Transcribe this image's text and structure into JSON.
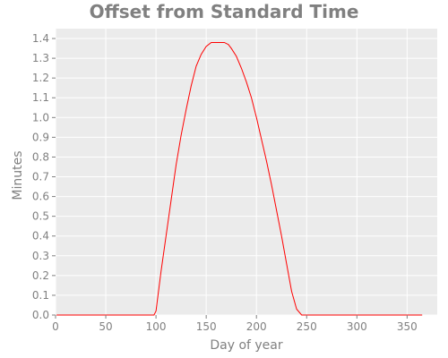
{
  "chart_data": {
    "type": "line",
    "title": "Offset from Standard Time",
    "xlabel": "Day of year",
    "ylabel": "Minutes",
    "xlim": [
      0,
      380
    ],
    "ylim": [
      0,
      1.45
    ],
    "x_ticks": [
      0,
      50,
      100,
      150,
      200,
      250,
      300,
      350
    ],
    "x_tick_labels": [
      "0",
      "50",
      "100",
      "150",
      "200",
      "250",
      "300",
      "350"
    ],
    "y_ticks": [
      0,
      0.1,
      0.2,
      0.3,
      0.4,
      0.5,
      0.6,
      0.7,
      0.8,
      0.9,
      1.0,
      1.1,
      1.2,
      1.3,
      1.4
    ],
    "y_tick_labels": [
      "0.0",
      "0.1",
      "0.2",
      "0.3",
      "0.4",
      "0.5",
      "0.6",
      "0.7",
      "0.8",
      "0.9",
      "1.0",
      "1.1",
      "1.2",
      "1.3",
      "1.4"
    ],
    "grid": true,
    "background": "#ebebeb",
    "grid_color": "#ffffff",
    "series": [
      {
        "color": "#ff0000",
        "x": [
          1,
          50,
          98,
          100,
          105,
          110,
          115,
          120,
          125,
          130,
          135,
          140,
          145,
          150,
          155,
          160,
          165,
          168,
          172,
          175,
          180,
          185,
          190,
          195,
          200,
          205,
          210,
          215,
          220,
          225,
          230,
          235,
          240,
          245,
          248,
          250,
          300,
          365
        ],
        "y": [
          0,
          0,
          0,
          0.02,
          0.22,
          0.4,
          0.58,
          0.76,
          0.91,
          1.04,
          1.16,
          1.26,
          1.32,
          1.36,
          1.38,
          1.38,
          1.38,
          1.38,
          1.37,
          1.35,
          1.31,
          1.25,
          1.18,
          1.1,
          1.0,
          0.89,
          0.78,
          0.66,
          0.53,
          0.4,
          0.26,
          0.12,
          0.03,
          0,
          0,
          0,
          0,
          0
        ]
      }
    ]
  }
}
